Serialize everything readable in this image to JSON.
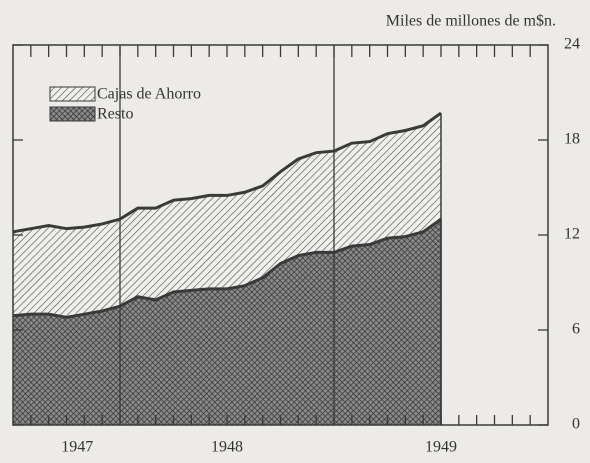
{
  "chart_data": {
    "type": "area",
    "stacked": true,
    "unit_label": "Miles de millones de m$n.",
    "x": [
      1947.5,
      1947.583,
      1947.667,
      1947.75,
      1947.833,
      1947.917,
      1948,
      1948.083,
      1948.167,
      1948.25,
      1948.333,
      1948.417,
      1948.5,
      1948.583,
      1948.667,
      1948.75,
      1948.833,
      1948.917,
      1949,
      1949.083,
      1949.167,
      1949.25,
      1949.333,
      1949.417,
      1949.5
    ],
    "series": [
      {
        "name": "Resto",
        "pattern": "crosshatch",
        "color": "#3a3a3a",
        "values": [
          6.9,
          7.0,
          7.0,
          6.8,
          7.0,
          7.2,
          7.5,
          8.1,
          7.9,
          8.4,
          8.5,
          8.6,
          8.6,
          8.8,
          9.3,
          10.2,
          10.7,
          10.9,
          10.9,
          11.3,
          11.4,
          11.8,
          11.9,
          12.2,
          13.0
        ]
      },
      {
        "name": "Cajas de Ahorro",
        "pattern": "hatch",
        "color": "#3a3a3a",
        "values": [
          5.3,
          5.4,
          5.6,
          5.6,
          5.5,
          5.5,
          5.5,
          5.6,
          5.8,
          5.8,
          5.8,
          5.9,
          5.9,
          5.9,
          5.8,
          5.8,
          6.1,
          6.3,
          6.4,
          6.5,
          6.5,
          6.6,
          6.7,
          6.7,
          6.7
        ]
      }
    ],
    "xlim": [
      1947.5,
      1950
    ],
    "xticks": [
      {
        "value": 1947.8,
        "label": "1947"
      },
      {
        "value": 1948.5,
        "label": "1948"
      },
      {
        "value": 1949.5,
        "label": "1949"
      }
    ],
    "vlines": [
      1948,
      1949
    ],
    "ylim": [
      0,
      24
    ],
    "yticks": [
      0,
      6,
      12,
      18,
      24
    ],
    "legend": "upper left"
  }
}
